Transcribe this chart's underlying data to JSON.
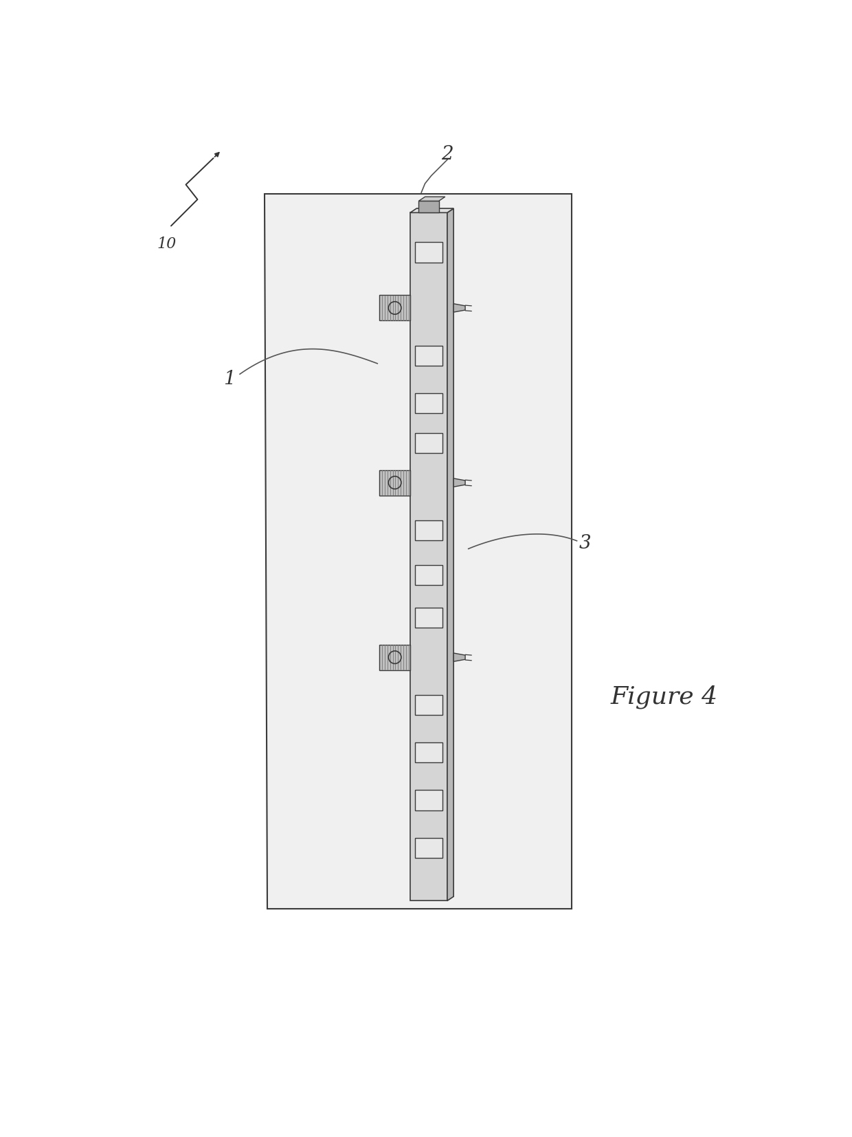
{
  "bg_color": "#ffffff",
  "line_color": "#3a3a3a",
  "fill_panel": "#f0f0f0",
  "fill_strip_front": "#d5d5d5",
  "fill_strip_side": "#b8b8b8",
  "fill_strip_top": "#e0e0e0",
  "fill_connector": "#aaaaaa",
  "fill_sq": "#e8e8e8",
  "figure_label": "Figure 4",
  "label_1": "1",
  "label_2": "2",
  "label_3": "3",
  "label_10": "10",
  "fig_width": 12.4,
  "fig_height": 16.54
}
